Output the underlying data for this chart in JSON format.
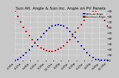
{
  "title": "Sun Alt. Angle & Sun Inc. Angle on PV Panels",
  "legend_labels": [
    "Altitude Angle",
    "Incidence Angle"
  ],
  "legend_colors": [
    "#0000cc",
    "#cc0000"
  ],
  "blue_x": [
    0,
    0.5,
    1,
    1.5,
    2,
    2.5,
    3,
    3.5,
    4,
    4.5,
    5,
    5.5,
    6,
    6.5,
    7,
    7.5,
    8,
    8.5,
    9,
    9.5,
    10,
    10.5,
    11,
    11.5,
    12,
    12.5,
    13,
    13.5,
    14,
    14.5,
    15,
    15.5,
    16
  ],
  "blue_y": [
    0,
    2,
    5,
    9,
    14,
    19,
    25,
    31,
    37,
    43,
    49,
    54,
    58,
    62,
    64,
    65,
    64,
    62,
    58,
    53,
    47,
    41,
    34,
    27,
    20,
    14,
    9,
    5,
    2,
    1,
    0,
    0,
    0
  ],
  "red_x": [
    0,
    0.5,
    1,
    1.5,
    2,
    2.5,
    3,
    3.5,
    4,
    4.5,
    5,
    5.5,
    6,
    6.5,
    7,
    7.5,
    8,
    8.5,
    9,
    9.5,
    10,
    10.5,
    11,
    11.5,
    12,
    12.5,
    13,
    13.5,
    14,
    14.5,
    15,
    15.5,
    16
  ],
  "red_y": [
    90,
    80,
    70,
    60,
    52,
    45,
    38,
    32,
    27,
    23,
    20,
    18,
    17,
    17,
    18,
    20,
    23,
    27,
    32,
    38,
    44,
    51,
    58,
    65,
    72,
    79,
    85,
    88,
    88,
    85,
    80,
    72,
    62
  ],
  "xlim": [
    0,
    16
  ],
  "ylim": [
    0,
    90
  ],
  "yticks": [
    0,
    10,
    20,
    30,
    40,
    50,
    60,
    70,
    80,
    90
  ],
  "background_color": "#c8c8c8",
  "plot_bg_color": "#c8c8c8",
  "grid_color": "#ffffff",
  "title_fontsize": 4.2,
  "tick_fontsize": 3.2,
  "marker_size": 1.8,
  "xtick_labels": [
    "2:30a",
    "4:15a",
    "6:00a",
    "7:45a",
    "9:30a",
    "11:15a",
    "1:00p",
    "2:45p",
    "4:30p",
    "6:15p",
    "8:00p",
    "9:45p",
    "11:30p"
  ]
}
